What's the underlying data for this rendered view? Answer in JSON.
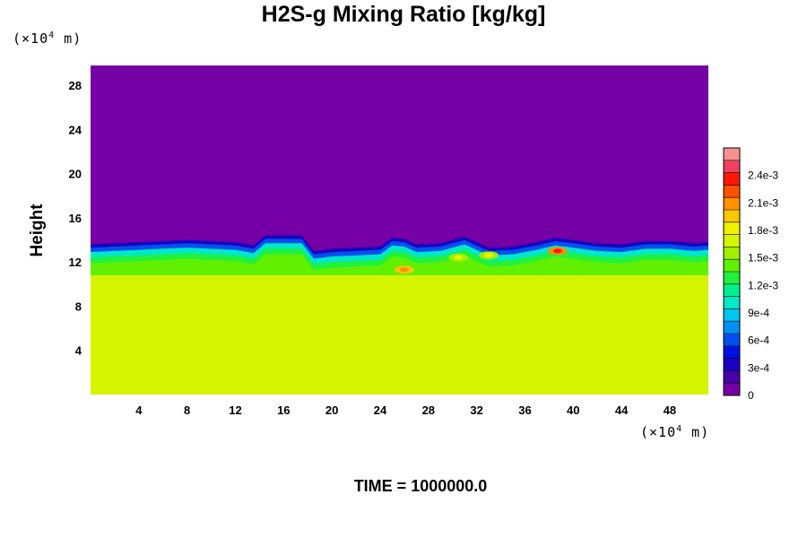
{
  "chart_data": {
    "type": "heatmap",
    "title": "H2S-g Mixing Ratio [kg/kg]",
    "ylabel": "Height",
    "xlabel": "",
    "x_unit": {
      "prefix": "(×10",
      "exp": "4",
      "suffix": " m)"
    },
    "y_unit": {
      "prefix": "(×10",
      "exp": "4",
      "suffix": " m)"
    },
    "xlim": [
      0,
      51.2
    ],
    "ylim": [
      0,
      29.8
    ],
    "x_ticks": [
      4,
      8,
      12,
      16,
      20,
      24,
      28,
      32,
      36,
      40,
      44,
      48
    ],
    "y_ticks": [
      4,
      8,
      12,
      16,
      20,
      24,
      28
    ],
    "background_value": 0,
    "lower_layer": {
      "top_height": 10.8,
      "value": 0.00175
    },
    "interface_profile": {
      "x": [
        0,
        2,
        4,
        6,
        8,
        10,
        12,
        13.5,
        14.5,
        16,
        17.5,
        18.5,
        20,
        22,
        24,
        25,
        26,
        27,
        29,
        31,
        33,
        35,
        37,
        38.5,
        40,
        42,
        44,
        46,
        48,
        50,
        51.2
      ],
      "top": [
        13.6,
        13.7,
        13.8,
        13.9,
        14.0,
        13.9,
        13.8,
        13.5,
        14.4,
        14.4,
        14.4,
        13.0,
        13.2,
        13.3,
        13.4,
        14.2,
        14.1,
        13.6,
        13.7,
        14.3,
        13.3,
        13.4,
        13.8,
        14.2,
        14.0,
        13.7,
        13.6,
        13.9,
        13.9,
        13.7,
        13.8
      ]
    },
    "hotspots": [
      {
        "x": 26.0,
        "y": 11.3,
        "value": 0.0021
      },
      {
        "x": 30.5,
        "y": 12.4,
        "value": 0.0018
      },
      {
        "x": 33.0,
        "y": 12.6,
        "value": 0.0018
      },
      {
        "x": 38.7,
        "y": 13.0,
        "value": 0.0023
      }
    ],
    "colorbar": {
      "min": 0,
      "max": 0.0027,
      "tick_labels": [
        "0",
        "3e-4",
        "6e-4",
        "9e-4",
        "1.2e-3",
        "1.5e-3",
        "1.8e-3",
        "2.1e-3",
        "2.4e-3"
      ],
      "tick_values": [
        0,
        0.0003,
        0.0006,
        0.0009,
        0.0012,
        0.0015,
        0.0018,
        0.0021,
        0.0024
      ],
      "colors": [
        "#7400a6",
        "#4a00a8",
        "#1a00c0",
        "#0010e0",
        "#0050f0",
        "#0090f4",
        "#00c4f0",
        "#00e8c8",
        "#00f090",
        "#20f040",
        "#60f000",
        "#a0f000",
        "#d4f400",
        "#f0f000",
        "#f8c800",
        "#ff9000",
        "#ff5000",
        "#ff1800",
        "#f04060",
        "#f89090"
      ]
    }
  },
  "footer": {
    "time_label": "TIME = 1000000.0"
  }
}
